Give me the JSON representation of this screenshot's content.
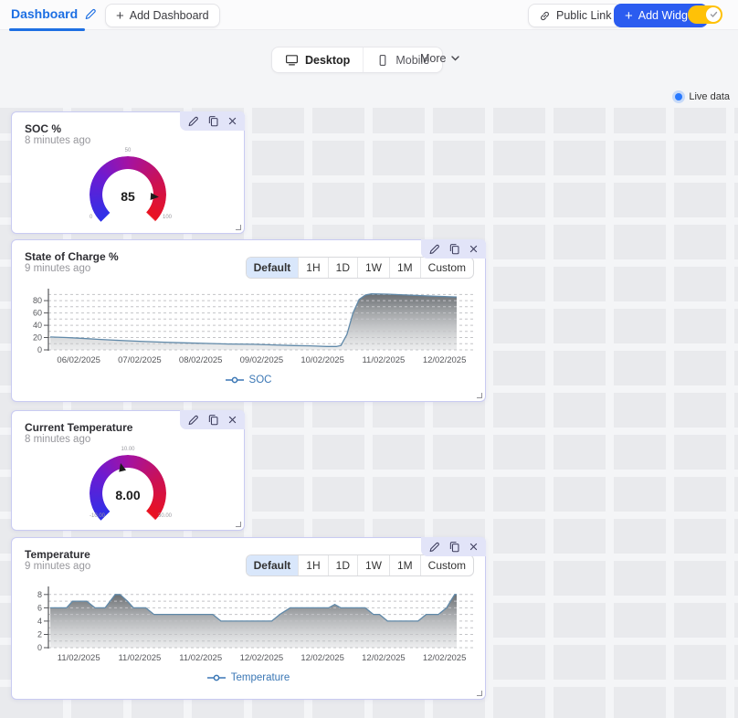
{
  "header": {
    "dashboard_tab_label": "Dashboard",
    "add_dashboard_button": "Add Dashboard",
    "public_link_button": "Public Link",
    "add_widget_button": "Add Widget"
  },
  "view_switcher": {
    "desktop_label": "Desktop",
    "mobile_label": "Mobile",
    "more_label": "More",
    "selected": "Desktop"
  },
  "live_data_label": "Live data",
  "time_ranges": [
    "Default",
    "1H",
    "1D",
    "1W",
    "1M",
    "Custom"
  ],
  "widgets": {
    "soc_gauge": {
      "title": "SOC %",
      "updated": "8 minutes ago",
      "value": "85",
      "min_label": "0",
      "mid_label": "50",
      "max_label": "100"
    },
    "soc_chart": {
      "title": "State of Charge %",
      "updated": "9 minutes ago",
      "selected_range": "Default"
    },
    "temp_gauge": {
      "title": "Current Temperature",
      "updated": "8 minutes ago",
      "value": "8.00",
      "min_label": "-10.00",
      "mid_label": "10.00",
      "max_label": "30.00"
    },
    "temp_chart": {
      "title": "Temperature",
      "updated": "9 minutes ago",
      "selected_range": "Default"
    }
  },
  "chart_data": [
    {
      "type": "area",
      "title": "State of Charge %",
      "legend": "SOC",
      "x_tick_labels": [
        "06/02/2025",
        "07/02/2025",
        "08/02/2025",
        "09/02/2025",
        "10/02/2025",
        "11/02/2025",
        "12/02/2025"
      ],
      "y_ticks": [
        0,
        20,
        40,
        60,
        80
      ],
      "y_grid_step": 10,
      "grid_max": 90,
      "ylim": [
        0,
        95
      ],
      "grid": "horizontal-dashed",
      "legend_position": "bottom",
      "line_color": "#6089a9",
      "series": [
        {
          "name": "SOC",
          "points": [
            [
              0,
              21
            ],
            [
              0.04,
              20
            ],
            [
              0.07,
              19
            ],
            [
              0.12,
              17
            ],
            [
              0.17,
              15.5
            ],
            [
              0.22,
              14
            ],
            [
              0.28,
              12.5
            ],
            [
              0.33,
              11.5
            ],
            [
              0.38,
              10.5
            ],
            [
              0.44,
              9.5
            ],
            [
              0.5,
              9
            ],
            [
              0.55,
              8
            ],
            [
              0.6,
              7
            ],
            [
              0.64,
              6.5
            ],
            [
              0.68,
              5.5
            ],
            [
              0.705,
              5.5
            ],
            [
              0.715,
              7
            ],
            [
              0.73,
              25
            ],
            [
              0.745,
              60
            ],
            [
              0.76,
              82
            ],
            [
              0.775,
              89
            ],
            [
              0.79,
              91
            ],
            [
              0.83,
              90.5
            ],
            [
              0.88,
              89
            ],
            [
              0.94,
              87.5
            ],
            [
              1,
              86
            ]
          ]
        }
      ]
    },
    {
      "type": "area",
      "title": "Temperature",
      "legend": "Temperature",
      "x_tick_labels": [
        "11/02/2025",
        "11/02/2025",
        "11/02/2025",
        "12/02/2025",
        "12/02/2025",
        "12/02/2025",
        "12/02/2025"
      ],
      "y_ticks": [
        0,
        2,
        4,
        6,
        8
      ],
      "y_grid_step": 1,
      "grid_max": 8,
      "ylim": [
        0,
        8.8
      ],
      "grid": "horizontal-dashed",
      "legend_position": "bottom",
      "line_color": "#6089a9",
      "series": [
        {
          "name": "Temperature",
          "points": [
            [
              0,
              6
            ],
            [
              0.04,
              6
            ],
            [
              0.055,
              7
            ],
            [
              0.09,
              7
            ],
            [
              0.11,
              6
            ],
            [
              0.135,
              6
            ],
            [
              0.16,
              8
            ],
            [
              0.172,
              8
            ],
            [
              0.19,
              7
            ],
            [
              0.205,
              6
            ],
            [
              0.235,
              6
            ],
            [
              0.255,
              5
            ],
            [
              0.4,
              5
            ],
            [
              0.42,
              4
            ],
            [
              0.545,
              4
            ],
            [
              0.565,
              5
            ],
            [
              0.59,
              6
            ],
            [
              0.685,
              6
            ],
            [
              0.7,
              6.5
            ],
            [
              0.715,
              6
            ],
            [
              0.775,
              6
            ],
            [
              0.795,
              5
            ],
            [
              0.81,
              5
            ],
            [
              0.83,
              4
            ],
            [
              0.905,
              4
            ],
            [
              0.925,
              5
            ],
            [
              0.955,
              5
            ],
            [
              0.975,
              6
            ],
            [
              0.985,
              7
            ],
            [
              0.995,
              8
            ],
            [
              1,
              8
            ]
          ]
        }
      ]
    }
  ],
  "colors": {
    "accent_blue": "#2b5cf0",
    "tab_active_blue": "#1d6fe3",
    "toggle_yellow": "#ffc107",
    "live_dot_blue": "#2979ff",
    "selected_range_bg": "#d9e7fb",
    "chart_line": "#6089a9",
    "legend_blue": "#3b77b5",
    "gauge_gradient": [
      "#2e31e8",
      "#a312a3",
      "#ea1220"
    ]
  }
}
